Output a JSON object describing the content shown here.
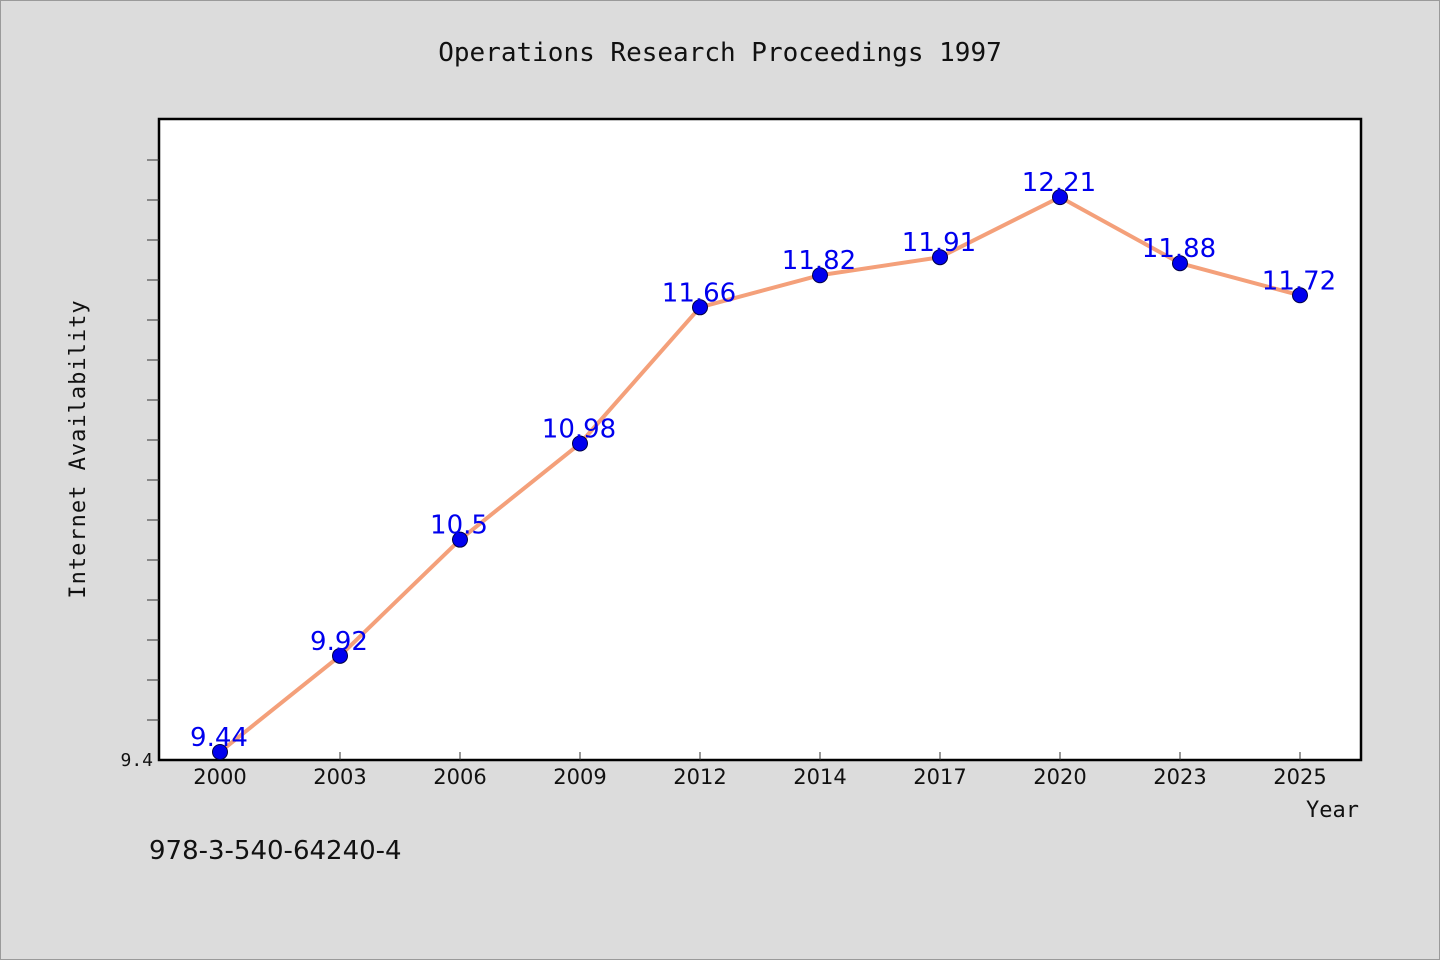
{
  "chart_data": {
    "type": "line",
    "title": "Operations Research Proceedings 1997",
    "xlabel": "Year",
    "ylabel": "Internet Availability",
    "categories": [
      "2000",
      "2003",
      "2006",
      "2009",
      "2012",
      "2014",
      "2017",
      "2020",
      "2023",
      "2025"
    ],
    "values": [
      9.44,
      9.92,
      10.5,
      10.98,
      11.66,
      11.82,
      11.91,
      12.21,
      11.88,
      11.72
    ],
    "data_labels": [
      "9.44",
      "9.92",
      "10.5",
      "10.98",
      "11.66",
      "11.82",
      "11.91",
      "12.21",
      "11.88",
      "11.72"
    ],
    "ylim": [
      9.4,
      12.6
    ],
    "y_tick_labels": [
      "9.4"
    ],
    "grid": false,
    "legend": "none",
    "colors": {
      "line": "#f4a07a",
      "marker": "#0000ee",
      "data_label": "#0000ee",
      "plot_background": "#ffffff",
      "figure_background": "#dcdcdc"
    }
  },
  "footer": {
    "isbn": "978-3-540-64240-4"
  }
}
